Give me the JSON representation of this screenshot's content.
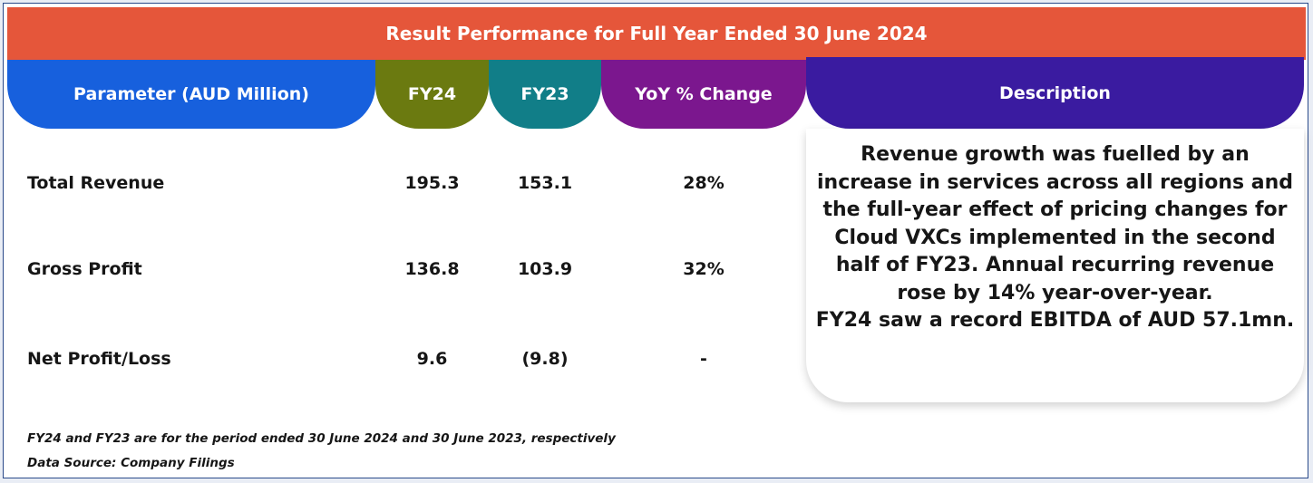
{
  "title": "Result Performance for Full Year Ended 30 June 2024",
  "headers": {
    "parameter": "Parameter (AUD Million)",
    "fy24": "FY24",
    "fy23": "FY23",
    "yoy": "YoY % Change",
    "description": "Description"
  },
  "rows": [
    {
      "label": "Total Revenue",
      "fy24": "195.3",
      "fy23": "153.1",
      "yoy": "28%"
    },
    {
      "label": "Gross Profit",
      "fy24": "136.8",
      "fy23": "103.9",
      "yoy": "32%"
    },
    {
      "label": "Net Profit/Loss",
      "fy24": "9.6",
      "fy23": "(9.8)",
      "yoy": "-"
    }
  ],
  "description": {
    "paragraph1": "Revenue growth was fuelled by an increase in services across all regions and the full-year effect of pricing changes for Cloud VXCs implemented in the second half of FY23. Annual recurring revenue rose by 14% year-over-year.",
    "paragraph2": "FY24 saw a record EBITDA of AUD 57.1mn."
  },
  "notes": {
    "period": "FY24 and FY23 are for the period ended 30 June 2024 and 30 June 2023, respectively",
    "source": "Data Source: Company Filings"
  },
  "colors": {
    "title": "#e5563a",
    "parameter": "#1760dd",
    "fy24": "#6b7a10",
    "fy23": "#117e88",
    "yoy": "#7b178e",
    "description": "#3a1ba0"
  }
}
